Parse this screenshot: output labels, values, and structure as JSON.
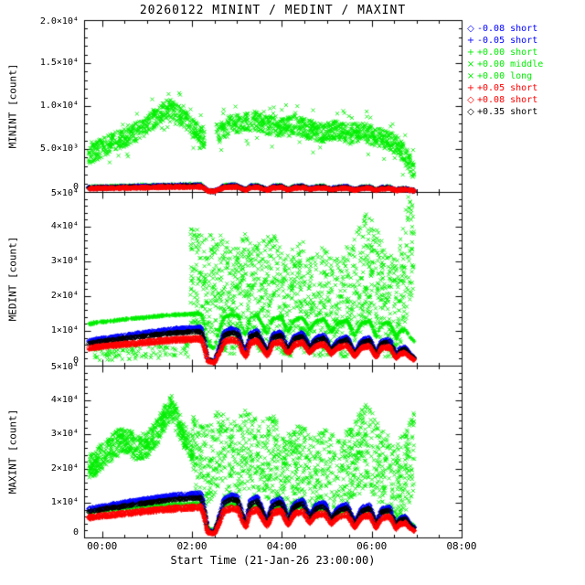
{
  "page": {
    "background": "#ffffff"
  },
  "chart_data": {
    "type": "scatter",
    "title": "20260122 MININT / MEDINT / MAXINT",
    "xlabel": "Start Time (21-Jan-26 23:00:00)",
    "colors": {
      "green": "#00ee00",
      "blue": "#0000ff",
      "red": "#ff0000",
      "black": "#000000"
    },
    "x_axis": {
      "note": "t is hours after 21-Jan-26 23:00",
      "range": [
        0.6,
        9.0
      ],
      "major_ticks": [
        {
          "t": 1,
          "label": "00:00"
        },
        {
          "t": 3,
          "label": "02:00"
        },
        {
          "t": 5,
          "label": "04:00"
        },
        {
          "t": 7,
          "label": "06:00"
        },
        {
          "t": 9,
          "label": "08:00"
        }
      ],
      "minor_step": 0.5
    },
    "gap": [
      3.28,
      3.55
    ],
    "panels": [
      {
        "name": "MININT",
        "ylabel": "MININT [count]",
        "ylim": [
          0,
          20000
        ],
        "minor_step": 1000,
        "yticks": [
          {
            "v": 0,
            "label": "0"
          },
          {
            "v": 5000,
            "label": "5.0×10³"
          },
          {
            "v": 10000,
            "label": "1.0×10⁴"
          },
          {
            "v": 15000,
            "label": "1.5×10⁴"
          },
          {
            "v": 20000,
            "label": "2.0×10⁴"
          }
        ]
      },
      {
        "name": "MEDINT",
        "ylabel": "MEDINT [count]",
        "ylim": [
          0,
          50000
        ],
        "minor_step": 2000,
        "yticks": [
          {
            "v": 0,
            "label": "0"
          },
          {
            "v": 10000,
            "label": "1×10⁴"
          },
          {
            "v": 20000,
            "label": "2×10⁴"
          },
          {
            "v": 30000,
            "label": "3×10⁴"
          },
          {
            "v": 40000,
            "label": "4×10⁴"
          },
          {
            "v": 50000,
            "label": "5×10⁴"
          }
        ]
      },
      {
        "name": "MAXINT",
        "ylabel": "MAXINT [count]",
        "ylim": [
          0,
          50000
        ],
        "minor_step": 2000,
        "yticks": [
          {
            "v": 0,
            "label": "0"
          },
          {
            "v": 10000,
            "label": "1×10⁴"
          },
          {
            "v": 20000,
            "label": "2×10⁴"
          },
          {
            "v": 30000,
            "label": "3×10⁴"
          },
          {
            "v": 40000,
            "label": "4×10⁴"
          },
          {
            "v": 50000,
            "label": "5×10⁴"
          }
        ]
      }
    ],
    "legend": [
      {
        "symbol": "◇",
        "symbol_name": "diamond",
        "color": "blue",
        "label": "-0.08 short"
      },
      {
        "symbol": "+",
        "symbol_name": "plus",
        "color": "blue",
        "label": "-0.05 short"
      },
      {
        "symbol": "+",
        "symbol_name": "plus",
        "color": "green",
        "label": "+0.00 short"
      },
      {
        "symbol": "×",
        "symbol_name": "cross",
        "color": "green",
        "label": "+0.00 middle"
      },
      {
        "symbol": "×",
        "symbol_name": "cross",
        "color": "green",
        "label": "+0.00 long"
      },
      {
        "symbol": "+",
        "symbol_name": "plus",
        "color": "red",
        "label": "+0.05 short"
      },
      {
        "symbol": "◇",
        "symbol_name": "diamond",
        "color": "red",
        "label": "+0.08 short"
      },
      {
        "symbol": "◇",
        "symbol_name": "diamond",
        "color": "black",
        "label": "+0.35 short"
      }
    ],
    "band_shape": [
      [
        0.7,
        0.6
      ],
      [
        1.0,
        0.66
      ],
      [
        1.4,
        0.72
      ],
      [
        1.8,
        0.78
      ],
      [
        2.2,
        0.84
      ],
      [
        2.6,
        0.89
      ],
      [
        3.0,
        0.92
      ],
      [
        3.2,
        0.93
      ],
      [
        3.28,
        0.6
      ],
      [
        3.35,
        0.15
      ],
      [
        3.5,
        0.1
      ],
      [
        3.6,
        0.4
      ],
      [
        3.72,
        0.82
      ],
      [
        3.88,
        0.9
      ],
      [
        4.02,
        0.86
      ],
      [
        4.12,
        0.5
      ],
      [
        4.2,
        0.3
      ],
      [
        4.3,
        0.78
      ],
      [
        4.45,
        0.86
      ],
      [
        4.58,
        0.55
      ],
      [
        4.68,
        0.32
      ],
      [
        4.8,
        0.76
      ],
      [
        4.98,
        0.82
      ],
      [
        5.14,
        0.38
      ],
      [
        5.28,
        0.72
      ],
      [
        5.46,
        0.8
      ],
      [
        5.62,
        0.44
      ],
      [
        5.76,
        0.68
      ],
      [
        5.94,
        0.74
      ],
      [
        6.1,
        0.4
      ],
      [
        6.25,
        0.62
      ],
      [
        6.45,
        0.7
      ],
      [
        6.62,
        0.3
      ],
      [
        6.78,
        0.62
      ],
      [
        6.95,
        0.68
      ],
      [
        7.1,
        0.28
      ],
      [
        7.22,
        0.6
      ],
      [
        7.4,
        0.64
      ],
      [
        7.55,
        0.24
      ],
      [
        7.62,
        0.4
      ],
      [
        7.75,
        0.44
      ],
      [
        7.85,
        0.28
      ],
      [
        7.95,
        0.2
      ]
    ],
    "envelopes": {
      "p1cloud": [
        [
          0.7,
          4200
        ],
        [
          0.95,
          5000
        ],
        [
          1.2,
          5700
        ],
        [
          1.45,
          6200
        ],
        [
          1.7,
          6800
        ],
        [
          1.95,
          7600
        ],
        [
          2.2,
          8700
        ],
        [
          2.45,
          9700
        ],
        [
          2.6,
          9500
        ],
        [
          2.8,
          8600
        ],
        [
          3.0,
          7600
        ],
        [
          3.2,
          6400
        ],
        [
          3.6,
          6800
        ],
        [
          3.8,
          7700
        ],
        [
          4.1,
          8000
        ],
        [
          4.4,
          8300
        ],
        [
          4.7,
          7800
        ],
        [
          5.0,
          7400
        ],
        [
          5.3,
          7800
        ],
        [
          5.6,
          7300
        ],
        [
          5.9,
          6900
        ],
        [
          6.2,
          7200
        ],
        [
          6.5,
          6800
        ],
        [
          6.8,
          7000
        ],
        [
          7.1,
          6400
        ],
        [
          7.4,
          6000
        ],
        [
          7.6,
          5200
        ],
        [
          7.75,
          4200
        ],
        [
          7.88,
          3000
        ],
        [
          7.95,
          2200
        ]
      ],
      "p2tall": [
        [
          2.95,
          26000
        ],
        [
          3.2,
          22000
        ],
        [
          3.6,
          22000
        ],
        [
          3.9,
          18000
        ],
        [
          4.2,
          24000
        ],
        [
          4.5,
          20000
        ],
        [
          4.8,
          22000
        ],
        [
          5.1,
          17000
        ],
        [
          5.4,
          21000
        ],
        [
          5.7,
          16000
        ],
        [
          6.0,
          19000
        ],
        [
          6.3,
          15000
        ],
        [
          6.6,
          22000
        ],
        [
          6.9,
          28000
        ],
        [
          7.1,
          24000
        ],
        [
          7.3,
          18000
        ],
        [
          7.55,
          14000
        ],
        [
          7.7,
          25000
        ],
        [
          7.85,
          35000
        ],
        [
          7.95,
          38000
        ]
      ],
      "p2low": [
        [
          0.7,
          3000
        ],
        [
          2.95,
          4500
        ]
      ],
      "p3pre": [
        [
          0.7,
          20000
        ],
        [
          0.95,
          23000
        ],
        [
          1.2,
          26000
        ],
        [
          1.45,
          28500
        ],
        [
          1.6,
          27500
        ],
        [
          1.8,
          26000
        ],
        [
          2.0,
          27000
        ],
        [
          2.2,
          30000
        ],
        [
          2.4,
          35000
        ],
        [
          2.55,
          37500
        ],
        [
          2.7,
          33000
        ],
        [
          2.85,
          29000
        ],
        [
          3.02,
          26000
        ]
      ],
      "p3post": [
        [
          3.0,
          24000
        ],
        [
          3.3,
          20000
        ],
        [
          3.6,
          26000
        ],
        [
          3.9,
          21000
        ],
        [
          4.2,
          26000
        ],
        [
          4.5,
          21000
        ],
        [
          4.8,
          24000
        ],
        [
          5.1,
          18000
        ],
        [
          5.4,
          22000
        ],
        [
          5.7,
          17000
        ],
        [
          6.0,
          20000
        ],
        [
          6.3,
          16000
        ],
        [
          6.6,
          23000
        ],
        [
          6.9,
          27000
        ],
        [
          7.2,
          21000
        ],
        [
          7.5,
          15000
        ],
        [
          7.7,
          18000
        ],
        [
          7.85,
          22000
        ],
        [
          7.95,
          25000
        ]
      ]
    },
    "series": [
      {
        "panel": 0,
        "name": "+0.00 long",
        "kind": "cloud",
        "marker": "x",
        "color": "green",
        "env": "p1cloud",
        "n": 1500,
        "spread": 1100,
        "clip": [
          150,
          19000
        ],
        "skip_gap": true
      },
      {
        "panel": 0,
        "name": "+0.00 middle",
        "kind": "cloud",
        "marker": "x",
        "color": "green",
        "env": "p1cloud",
        "n": 130,
        "spread": 2600,
        "clip": [
          1200,
          12500
        ],
        "skip_gap": true
      },
      {
        "panel": 0,
        "name": "+0.00 short",
        "kind": "band",
        "marker": "+",
        "color": "green",
        "amp": 950,
        "spread": 140,
        "n": 700
      },
      {
        "panel": 0,
        "name": "-0.05 short",
        "kind": "band",
        "marker": "+",
        "color": "blue",
        "amp": 780,
        "spread": 130,
        "n": 650
      },
      {
        "panel": 0,
        "name": "-0.08 short",
        "kind": "band",
        "marker": "d",
        "color": "blue",
        "amp": 820,
        "spread": 130,
        "n": 600
      },
      {
        "panel": 0,
        "name": "+0.35 short",
        "kind": "band",
        "marker": "d",
        "color": "black",
        "amp": 720,
        "spread": 130,
        "n": 600
      },
      {
        "panel": 0,
        "name": "+0.05 short",
        "kind": "band",
        "marker": "+",
        "color": "red",
        "amp": 600,
        "spread": 120,
        "n": 650
      },
      {
        "panel": 0,
        "name": "+0.08 short",
        "kind": "band",
        "marker": "d",
        "color": "red",
        "amp": 650,
        "spread": 120,
        "n": 600
      },
      {
        "panel": 1,
        "name": "+0.00 long",
        "kind": "cloud",
        "marker": "x",
        "color": "green",
        "env": "p2tall",
        "n": 1600,
        "spread": 16000,
        "clip": [
          2500,
          49500
        ],
        "trange": [
          2.95,
          7.95
        ]
      },
      {
        "panel": 1,
        "name": "+0.00 middle",
        "kind": "cloud",
        "marker": "x",
        "color": "green",
        "env": "p2low",
        "n": 110,
        "spread": 2000,
        "clip": [
          800,
          9000
        ],
        "trange": [
          0.75,
          2.95
        ]
      },
      {
        "panel": 1,
        "name": "+0.00 short",
        "kind": "band",
        "marker": "+",
        "color": "green",
        "amp": 15500,
        "gamma": 0.5,
        "spread": 350,
        "n": 900
      },
      {
        "panel": 1,
        "name": "-0.05 short",
        "kind": "band",
        "marker": "+",
        "color": "blue",
        "amp": 11200,
        "spread": 300,
        "n": 800
      },
      {
        "panel": 1,
        "name": "-0.08 short",
        "kind": "band",
        "marker": "d",
        "color": "blue",
        "amp": 11800,
        "spread": 300,
        "n": 700
      },
      {
        "panel": 1,
        "name": "+0.35 short",
        "kind": "band",
        "marker": "d",
        "color": "black",
        "amp": 10600,
        "spread": 300,
        "n": 700
      },
      {
        "panel": 1,
        "name": "+0.05 short",
        "kind": "band",
        "marker": "+",
        "color": "red",
        "amp": 7800,
        "spread": 280,
        "n": 800
      },
      {
        "panel": 1,
        "name": "+0.08 short",
        "kind": "band",
        "marker": "d",
        "color": "red",
        "amp": 8600,
        "spread": 280,
        "n": 700
      },
      {
        "panel": 2,
        "name": "+0.00 long",
        "kind": "cloud",
        "marker": "x",
        "color": "green",
        "env": "p3pre",
        "n": 700,
        "spread": 3800,
        "clip": [
          8000,
          48000
        ],
        "trange": [
          0.7,
          3.02
        ]
      },
      {
        "panel": 2,
        "name": "+0.00 middle",
        "kind": "cloud",
        "marker": "x",
        "color": "green",
        "env": "p3post",
        "n": 1400,
        "spread": 12000,
        "clip": [
          3000,
          47000
        ],
        "trange": [
          3.0,
          7.95
        ]
      },
      {
        "panel": 2,
        "name": "+0.00 short",
        "kind": "band",
        "marker": "+",
        "color": "green",
        "amp": 10400,
        "gamma": 0.7,
        "spread": 350,
        "n": 800
      },
      {
        "panel": 2,
        "name": "-0.05 short",
        "kind": "band",
        "marker": "+",
        "color": "blue",
        "amp": 13100,
        "spread": 330,
        "n": 800
      },
      {
        "panel": 2,
        "name": "-0.08 short",
        "kind": "band",
        "marker": "d",
        "color": "blue",
        "amp": 13800,
        "spread": 330,
        "n": 700
      },
      {
        "panel": 2,
        "name": "+0.35 short",
        "kind": "band",
        "marker": "d",
        "color": "black",
        "amp": 12400,
        "spread": 330,
        "n": 700
      },
      {
        "panel": 2,
        "name": "+0.05 short",
        "kind": "band",
        "marker": "+",
        "color": "red",
        "amp": 8900,
        "spread": 300,
        "n": 800
      },
      {
        "panel": 2,
        "name": "+0.08 short",
        "kind": "band",
        "marker": "d",
        "color": "red",
        "amp": 9800,
        "spread": 300,
        "n": 700
      }
    ]
  }
}
